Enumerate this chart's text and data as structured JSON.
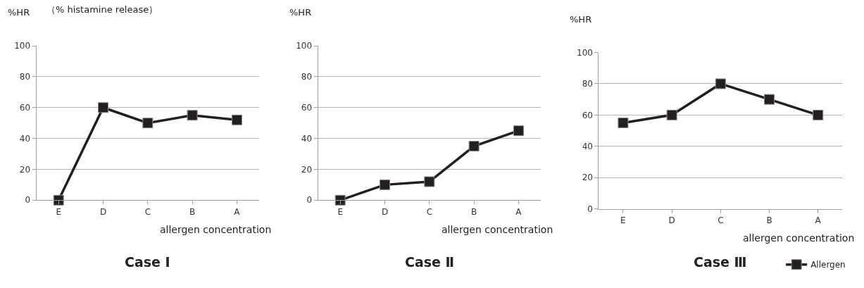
{
  "chart_data": [
    {
      "type": "line",
      "title": "Case Ⅰ",
      "ylabel": "%HR",
      "subtitle": "（% histamine release）",
      "xlabel": "allergen concentration",
      "categories": [
        "E",
        "D",
        "C",
        "B",
        "A"
      ],
      "series": [
        {
          "color": "#231f20",
          "values": [
            0,
            60,
            50,
            55,
            52
          ]
        }
      ],
      "ylim": [
        0,
        100
      ],
      "yticks": [
        0,
        20,
        40,
        60,
        80,
        100
      ],
      "grid": "y",
      "marker": "square",
      "line_style": "solid",
      "legend": false
    },
    {
      "type": "line",
      "title": "Case Ⅱ",
      "ylabel": "%HR",
      "xlabel": "allergen concentration",
      "categories": [
        "E",
        "D",
        "C",
        "B",
        "A"
      ],
      "series": [
        {
          "color": "#231f20",
          "values": [
            0,
            10,
            12,
            35,
            45
          ]
        }
      ],
      "ylim": [
        0,
        100
      ],
      "yticks": [
        0,
        20,
        40,
        60,
        80,
        100
      ],
      "grid": "y",
      "marker": "square",
      "line_style": "solid",
      "legend": false
    },
    {
      "type": "line",
      "title": "Case Ⅲ",
      "ylabel": "%HR",
      "xlabel": "allergen concentration",
      "categories": [
        "E",
        "D",
        "C",
        "B",
        "A"
      ],
      "series": [
        {
          "name": "Allergen",
          "color": "#231f20",
          "values": [
            55,
            60,
            80,
            70,
            60
          ]
        }
      ],
      "ylim": [
        0,
        100
      ],
      "yticks": [
        0,
        20,
        40,
        60,
        80,
        100
      ],
      "grid": "y",
      "marker": "square",
      "line_style": "solid",
      "legend": "bottom right"
    }
  ]
}
